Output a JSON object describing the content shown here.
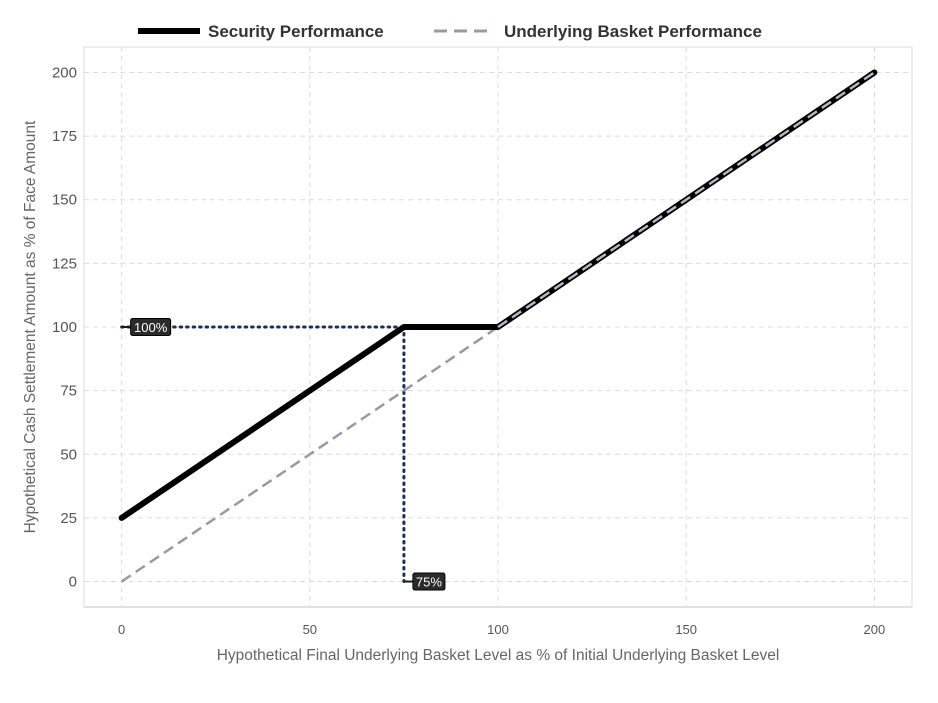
{
  "chart_data": {
    "type": "line",
    "x_range": [
      -10,
      210
    ],
    "ylim": [
      -10,
      210
    ],
    "x_ticks": [
      0,
      50,
      100,
      150,
      200
    ],
    "y_ticks": [
      0,
      25,
      50,
      75,
      100,
      125,
      150,
      175,
      200
    ],
    "xlabel": "Hypothetical Final Underlying Basket Level as % of Initial Underlying Basket Level",
    "ylabel": "Hypothetical Cash Settlement Amount as % of Face Amount",
    "grid": true,
    "legend_position": "top-center",
    "series": [
      {
        "name": "Security Performance",
        "style": "solid",
        "color": "#000000",
        "points": [
          [
            0,
            25
          ],
          [
            75,
            100
          ],
          [
            100,
            100
          ],
          [
            200,
            200
          ]
        ]
      },
      {
        "name": "Underlying Basket Performance",
        "style": "dashed",
        "color": "#9a98a6",
        "points": [
          [
            0,
            0
          ],
          [
            200,
            200
          ]
        ]
      }
    ],
    "reference_lines": [
      {
        "from": [
          0,
          100
        ],
        "to": [
          75,
          100
        ],
        "style": "dotted",
        "color": "#1d2d5c"
      },
      {
        "from": [
          75,
          100
        ],
        "to": [
          75,
          0
        ],
        "style": "dotted",
        "color": "#1d2d5c"
      }
    ],
    "annotations": [
      {
        "text": "100%",
        "x": 0,
        "y": 100
      },
      {
        "text": "75%",
        "x": 75,
        "y": 0
      }
    ]
  }
}
